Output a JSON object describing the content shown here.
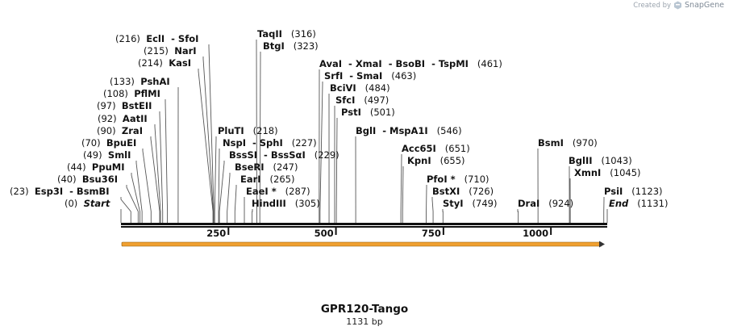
{
  "credit": {
    "prefix": "Created by",
    "brand": "SnapGene"
  },
  "title": "GPR120-Tango",
  "length_label": "1131 bp",
  "seq_length": 1131,
  "ruler": [
    "250",
    "500",
    "750",
    "1000"
  ],
  "feature_color": "#f0a030",
  "sites": [
    {
      "id": "start",
      "names": [
        "Start"
      ],
      "pos": "(0)",
      "site": 0,
      "italic": true,
      "posFirst": true
    },
    {
      "id": "esp3i",
      "names": [
        "Esp3I",
        "BsmBI"
      ],
      "pos": "(23)",
      "site": 23,
      "posFirst": true
    },
    {
      "id": "bsu36i",
      "names": [
        "Bsu36I"
      ],
      "pos": "(40)",
      "site": 40,
      "posFirst": true
    },
    {
      "id": "ppumi",
      "names": [
        "PpuMI"
      ],
      "pos": "(44)",
      "site": 44,
      "posFirst": true
    },
    {
      "id": "smli",
      "names": [
        "SmlI"
      ],
      "pos": "(49)",
      "site": 49,
      "posFirst": true
    },
    {
      "id": "bpuei",
      "names": [
        "BpuEI"
      ],
      "pos": "(70)",
      "site": 70,
      "posFirst": true
    },
    {
      "id": "zrai",
      "names": [
        "ZraI"
      ],
      "pos": "(90)",
      "site": 90,
      "posFirst": true
    },
    {
      "id": "aatii",
      "names": [
        "AatII"
      ],
      "pos": "(92)",
      "site": 92,
      "posFirst": true
    },
    {
      "id": "bsteii",
      "names": [
        "BstEII"
      ],
      "pos": "(97)",
      "site": 97,
      "posFirst": true
    },
    {
      "id": "pflmi",
      "names": [
        "PflMI"
      ],
      "pos": "(108)",
      "site": 108,
      "posFirst": true
    },
    {
      "id": "pshai",
      "names": [
        "PshAI"
      ],
      "pos": "(133)",
      "site": 133,
      "posFirst": true
    },
    {
      "id": "kasi",
      "names": [
        "KasI"
      ],
      "pos": "(214)",
      "site": 214,
      "posFirst": true
    },
    {
      "id": "nari",
      "names": [
        "NarI"
      ],
      "pos": "(215)",
      "site": 215,
      "posFirst": true
    },
    {
      "id": "ecli",
      "names": [
        "EclI",
        "SfoI"
      ],
      "pos": "(216)",
      "site": 216,
      "posFirst": true
    },
    {
      "id": "pluti",
      "names": [
        "PluTI"
      ],
      "pos": "(218)",
      "site": 218
    },
    {
      "id": "nspi",
      "names": [
        "NspI",
        "SphI"
      ],
      "pos": "(227)",
      "site": 227
    },
    {
      "id": "bsssi",
      "names": [
        "BssSI",
        "BssSαI"
      ],
      "pos": "(229)",
      "site": 229
    },
    {
      "id": "bseri",
      "names": [
        "BseRI"
      ],
      "pos": "(247)",
      "site": 247
    },
    {
      "id": "eari",
      "names": [
        "EarI"
      ],
      "pos": "(265)",
      "site": 265
    },
    {
      "id": "eaei",
      "names": [
        "EaeI *"
      ],
      "pos": "(287)",
      "site": 287
    },
    {
      "id": "hindiii",
      "names": [
        "HindIII"
      ],
      "pos": "(305)",
      "site": 305
    },
    {
      "id": "taqii",
      "names": [
        "TaqII"
      ],
      "pos": "(316)",
      "site": 316
    },
    {
      "id": "btgi",
      "names": [
        "BtgI"
      ],
      "pos": "(323)",
      "site": 323
    },
    {
      "id": "avai",
      "names": [
        "AvaI",
        "XmaI",
        "BsoBI",
        "TspMI"
      ],
      "pos": "(461)",
      "site": 461
    },
    {
      "id": "srfi",
      "names": [
        "SrfI",
        "SmaI"
      ],
      "pos": "(463)",
      "site": 463
    },
    {
      "id": "bcivi",
      "names": [
        "BciVI"
      ],
      "pos": "(484)",
      "site": 484
    },
    {
      "id": "sfci",
      "names": [
        "SfcI"
      ],
      "pos": "(497)",
      "site": 497
    },
    {
      "id": "psti",
      "names": [
        "PstI"
      ],
      "pos": "(501)",
      "site": 501
    },
    {
      "id": "bgli",
      "names": [
        "BglI",
        "MspA1I"
      ],
      "pos": "(546)",
      "site": 546
    },
    {
      "id": "acc65i",
      "names": [
        "Acc65I"
      ],
      "pos": "(651)",
      "site": 651
    },
    {
      "id": "kpni",
      "names": [
        "KpnI"
      ],
      "pos": "(655)",
      "site": 655
    },
    {
      "id": "pfoi",
      "names": [
        "PfoI *"
      ],
      "pos": "(710)",
      "site": 710
    },
    {
      "id": "bstxi",
      "names": [
        "BstXI"
      ],
      "pos": "(726)",
      "site": 726
    },
    {
      "id": "styi",
      "names": [
        "StyI"
      ],
      "pos": "(749)",
      "site": 749
    },
    {
      "id": "drai",
      "names": [
        "DraI"
      ],
      "pos": "(924)",
      "site": 924
    },
    {
      "id": "bsmi",
      "names": [
        "BsmI"
      ],
      "pos": "(970)",
      "site": 970
    },
    {
      "id": "bglii",
      "names": [
        "BglII"
      ],
      "pos": "(1043)",
      "site": 1043
    },
    {
      "id": "xmni",
      "names": [
        "XmnI"
      ],
      "pos": "(1045)",
      "site": 1045
    },
    {
      "id": "psii",
      "names": [
        "PsiI"
      ],
      "pos": "(1123)",
      "site": 1123
    },
    {
      "id": "end",
      "names": [
        "End"
      ],
      "pos": "(1131)",
      "site": 1131,
      "italic": true
    }
  ]
}
